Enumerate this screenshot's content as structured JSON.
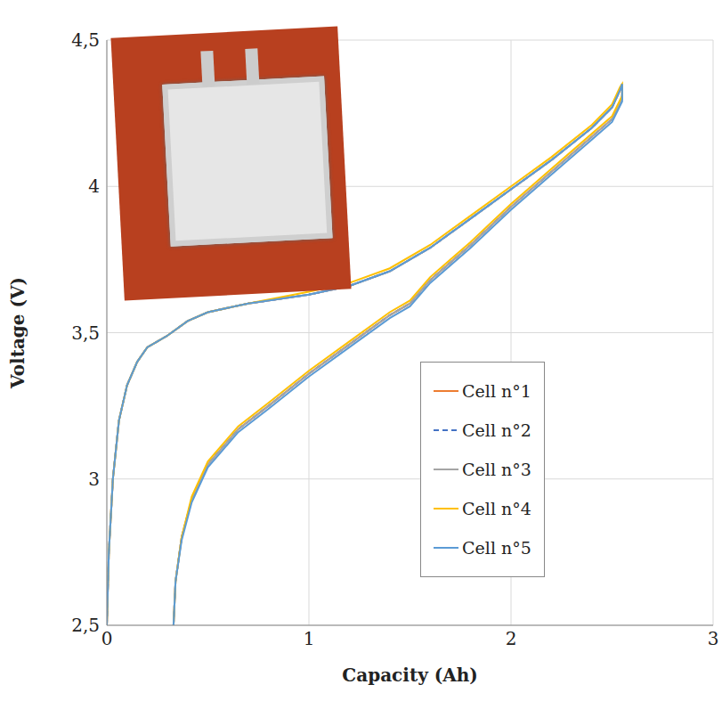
{
  "chart_data": {
    "type": "line",
    "x_label": "Capacity (Ah)",
    "y_label": "Voltage (V)",
    "xlim": [
      0,
      3
    ],
    "xticks": [
      0,
      1,
      2,
      3
    ],
    "ylim": [
      2.5,
      4.5
    ],
    "yticks": [
      {
        "value": 2.5,
        "label": "2,5"
      },
      3,
      {
        "value": 3.5,
        "label": "3,5"
      },
      4,
      {
        "value": 4.5,
        "label": "4,5"
      }
    ],
    "grid": true,
    "legend": "lower right",
    "x": [
      0,
      0.01,
      0.03,
      0.06,
      0.1,
      0.15,
      0.2,
      0.25,
      0.3,
      0.4,
      0.5,
      0.7,
      1.0,
      1.2,
      1.4,
      1.6,
      1.8,
      2.0,
      2.2,
      2.4,
      2.5,
      2.54,
      2.55,
      2.55,
      2.5,
      2.4,
      2.2,
      2.0,
      1.8,
      1.6,
      1.5,
      1.4,
      1.2,
      1.0,
      0.8,
      0.65,
      0.5,
      0.42,
      0.37,
      0.34,
      0.33
    ],
    "series": [
      {
        "name": "Cell n°1",
        "color": "#ed7d31",
        "line_style": "solid",
        "values": [
          2.5,
          2.75,
          3.0,
          3.2,
          3.32,
          3.4,
          3.45,
          3.47,
          3.49,
          3.54,
          3.57,
          3.6,
          3.63,
          3.66,
          3.71,
          3.79,
          3.89,
          3.99,
          4.09,
          4.2,
          4.27,
          4.33,
          4.35,
          4.3,
          4.23,
          4.17,
          4.05,
          3.93,
          3.8,
          3.68,
          3.6,
          3.56,
          3.46,
          3.36,
          3.25,
          3.17,
          3.05,
          2.93,
          2.8,
          2.65,
          2.5
        ]
      },
      {
        "name": "Cell n°2",
        "color": "#4472c4",
        "line_style": "dashed",
        "values": [
          2.5,
          2.75,
          3.0,
          3.2,
          3.32,
          3.4,
          3.45,
          3.47,
          3.49,
          3.54,
          3.57,
          3.6,
          3.63,
          3.66,
          3.71,
          3.79,
          3.89,
          3.99,
          4.09,
          4.2,
          4.27,
          4.33,
          4.35,
          4.3,
          4.23,
          4.17,
          4.05,
          3.93,
          3.8,
          3.68,
          3.6,
          3.56,
          3.46,
          3.36,
          3.25,
          3.17,
          3.05,
          2.93,
          2.8,
          2.65,
          2.5
        ]
      },
      {
        "name": "Cell n°3",
        "color": "#a5a5a5",
        "line_style": "solid",
        "values": [
          2.5,
          2.75,
          3.0,
          3.2,
          3.32,
          3.4,
          3.45,
          3.47,
          3.49,
          3.54,
          3.57,
          3.6,
          3.63,
          3.66,
          3.71,
          3.79,
          3.89,
          3.99,
          4.09,
          4.2,
          4.27,
          4.33,
          4.35,
          4.3,
          4.23,
          4.17,
          4.05,
          3.93,
          3.8,
          3.68,
          3.6,
          3.56,
          3.46,
          3.36,
          3.25,
          3.17,
          3.05,
          2.93,
          2.8,
          2.65,
          2.5
        ]
      },
      {
        "name": "Cell n°4",
        "color": "#ffc000",
        "line_style": "solid",
        "values": [
          2.5,
          2.75,
          3.0,
          3.2,
          3.32,
          3.4,
          3.45,
          3.47,
          3.49,
          3.54,
          3.57,
          3.6,
          3.64,
          3.67,
          3.72,
          3.8,
          3.9,
          4.0,
          4.1,
          4.21,
          4.28,
          4.34,
          4.35,
          4.31,
          4.24,
          4.18,
          4.06,
          3.94,
          3.81,
          3.69,
          3.61,
          3.57,
          3.47,
          3.37,
          3.26,
          3.18,
          3.06,
          2.94,
          2.8,
          2.65,
          2.5
        ]
      },
      {
        "name": "Cell n°5",
        "color": "#5b9bd5",
        "line_style": "solid",
        "values": [
          2.5,
          2.75,
          3.0,
          3.2,
          3.32,
          3.4,
          3.45,
          3.47,
          3.49,
          3.54,
          3.57,
          3.6,
          3.63,
          3.66,
          3.71,
          3.79,
          3.89,
          3.99,
          4.09,
          4.2,
          4.27,
          4.33,
          4.35,
          4.29,
          4.22,
          4.16,
          4.04,
          3.92,
          3.79,
          3.67,
          3.59,
          3.55,
          3.45,
          3.35,
          3.24,
          3.16,
          3.04,
          2.92,
          2.79,
          2.65,
          2.5
        ]
      }
    ]
  }
}
